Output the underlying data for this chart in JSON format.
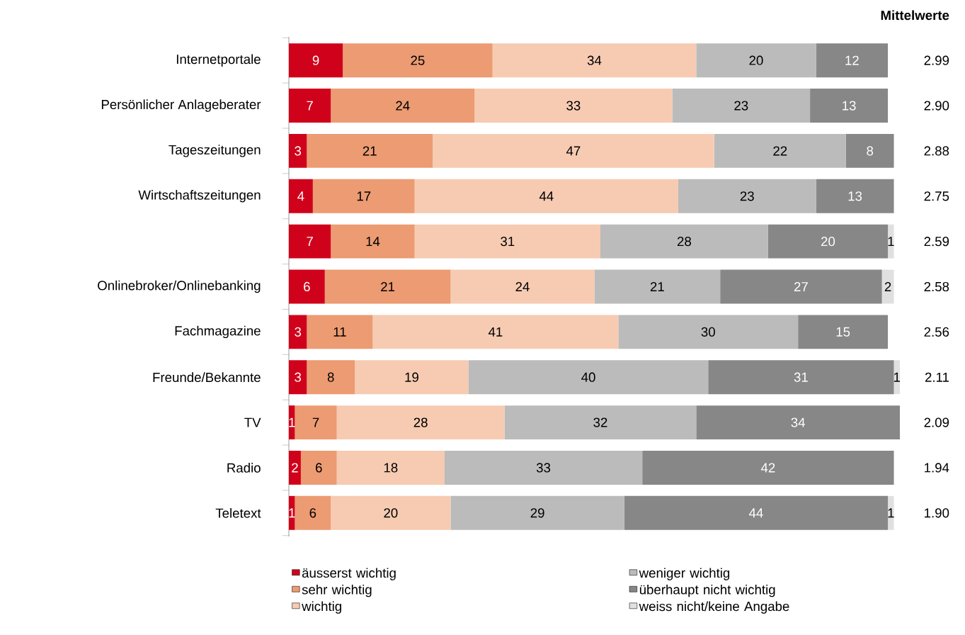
{
  "chart_data": {
    "type": "bar",
    "orientation": "horizontal",
    "stacked": true,
    "categories": [
      "Internetportale",
      "Persönlicher Anlageberater",
      "Tageszeitungen",
      "Wirtschaftszeitungen",
      null,
      "Onlinebroker/Onlinebanking",
      "Fachmagazine",
      "Freunde/Bekannte",
      "TV",
      "Radio",
      "Teletext"
    ],
    "series": [
      {
        "name": "äusserst wichtig",
        "color": "#d0021b",
        "values": [
          9,
          7,
          3,
          4,
          7,
          6,
          3,
          3,
          1,
          2,
          1
        ]
      },
      {
        "name": "sehr wichtig",
        "color": "#ec9b72",
        "values": [
          25,
          24,
          21,
          17,
          14,
          21,
          11,
          8,
          7,
          6,
          6
        ]
      },
      {
        "name": "wichtig",
        "color": "#f6cbb2",
        "values": [
          34,
          33,
          47,
          44,
          31,
          24,
          41,
          19,
          28,
          18,
          20
        ]
      },
      {
        "name": "weniger wichtig",
        "color": "#bbbbbb",
        "values": [
          20,
          23,
          22,
          23,
          28,
          21,
          30,
          40,
          32,
          33,
          29
        ]
      },
      {
        "name": "überhaupt nicht wichtig",
        "color": "#878787",
        "values": [
          12,
          13,
          8,
          13,
          20,
          27,
          15,
          31,
          34,
          42,
          44
        ]
      },
      {
        "name": "weiss nicht/keine Angabe",
        "color": "#e0e0e0",
        "values": [
          null,
          null,
          null,
          null,
          1,
          2,
          null,
          1,
          null,
          null,
          1
        ]
      }
    ],
    "xlim": [
      0,
      102
    ],
    "tick_labels": "y",
    "legend": "bottom",
    "data_labels": true,
    "annotations": [
      "Mittelwerte",
      "2.99",
      "2.90",
      "2.88",
      "2.75",
      "2.59",
      "2.58",
      "2.56",
      "2.11",
      "2.09",
      "1.94",
      "1.90"
    ]
  }
}
